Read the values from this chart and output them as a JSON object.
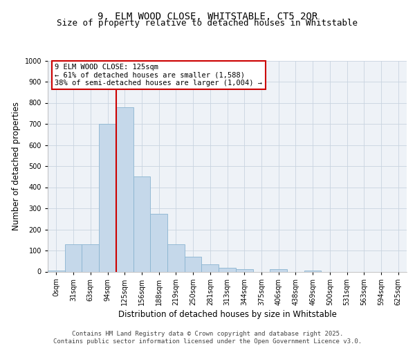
{
  "title_line1": "9, ELM WOOD CLOSE, WHITSTABLE, CT5 2QR",
  "title_line2": "Size of property relative to detached houses in Whitstable",
  "xlabel": "Distribution of detached houses by size in Whitstable",
  "ylabel": "Number of detached properties",
  "bar_labels": [
    "0sqm",
    "31sqm",
    "63sqm",
    "94sqm",
    "125sqm",
    "156sqm",
    "188sqm",
    "219sqm",
    "250sqm",
    "281sqm",
    "313sqm",
    "344sqm",
    "375sqm",
    "406sqm",
    "438sqm",
    "469sqm",
    "500sqm",
    "531sqm",
    "563sqm",
    "594sqm",
    "625sqm"
  ],
  "bar_values": [
    5,
    130,
    130,
    700,
    780,
    450,
    275,
    130,
    70,
    35,
    18,
    10,
    0,
    10,
    0,
    5,
    0,
    0,
    0,
    0,
    0
  ],
  "bar_color": "#c5d8ea",
  "bar_edge_color": "#8ab4d0",
  "property_line_x": 3.5,
  "annotation_text": "9 ELM WOOD CLOSE: 125sqm\n← 61% of detached houses are smaller (1,588)\n38% of semi-detached houses are larger (1,004) →",
  "annotation_box_color": "#ffffff",
  "annotation_box_edge": "#cc0000",
  "vline_color": "#cc0000",
  "ylim": [
    0,
    1000
  ],
  "yticks": [
    0,
    100,
    200,
    300,
    400,
    500,
    600,
    700,
    800,
    900,
    1000
  ],
  "grid_color": "#c8d4e0",
  "background_color": "#eef2f7",
  "footer_text": "Contains HM Land Registry data © Crown copyright and database right 2025.\nContains public sector information licensed under the Open Government Licence v3.0.",
  "title_fontsize": 10,
  "subtitle_fontsize": 9,
  "axis_label_fontsize": 8.5,
  "tick_fontsize": 7,
  "annotation_fontsize": 7.5,
  "footer_fontsize": 6.5
}
